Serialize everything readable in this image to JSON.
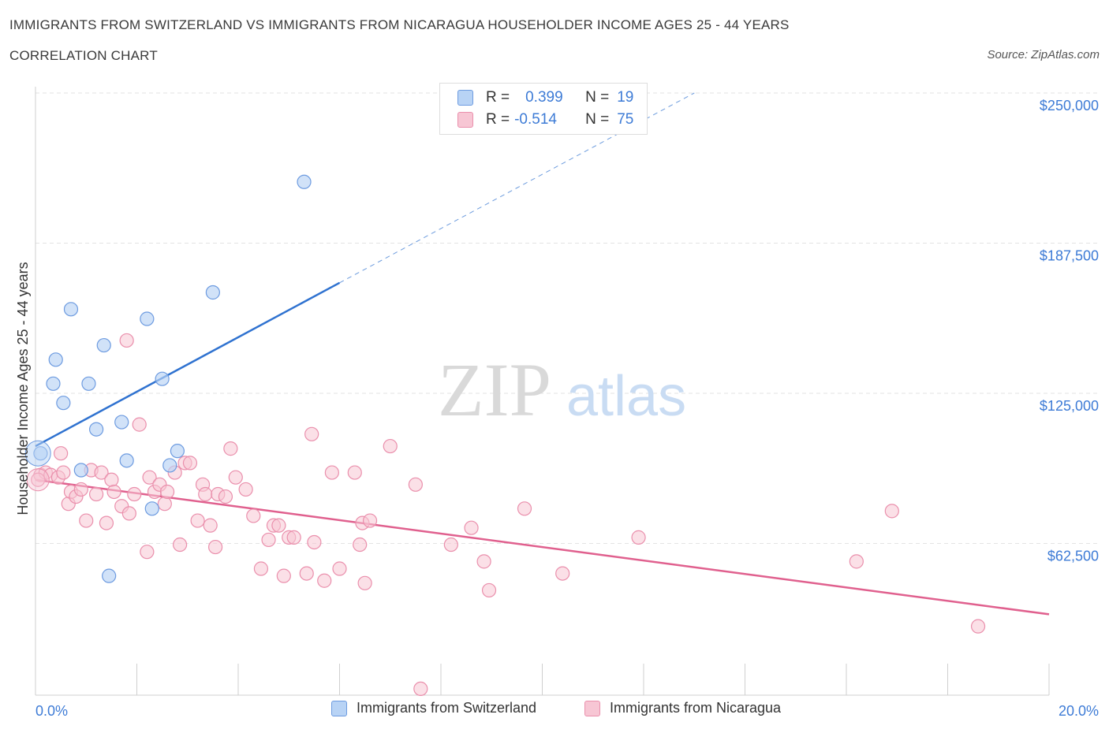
{
  "header": {
    "title": "IMMIGRANTS FROM SWITZERLAND VS IMMIGRANTS FROM NICARAGUA HOUSEHOLDER INCOME AGES 25 - 44 YEARS",
    "subtitle": "CORRELATION CHART",
    "source": "Source: ZipAtlas.com"
  },
  "watermark": {
    "zip": "ZIP",
    "atlas": "atlas"
  },
  "stats": {
    "r_label": "R =",
    "n_label": "N =",
    "switzerland": {
      "r": "0.399",
      "n": "19"
    },
    "nicaragua": {
      "r": "-0.514",
      "n": "75"
    }
  },
  "legend": {
    "switzerland": "Immigrants from Switzerland",
    "nicaragua": "Immigrants from Nicaragua"
  },
  "colors": {
    "switzerland_fill": "#b8d3f5",
    "switzerland_stroke": "#6d9be0",
    "switzerland_line": "#2f72d0",
    "nicaragua_fill": "#f7c6d4",
    "nicaragua_stroke": "#ea8fac",
    "nicaragua_line": "#e0608e",
    "axis_label": "#3d7bd6",
    "grid": "#e3e3e3"
  },
  "chart_data": {
    "type": "scatter",
    "ylabel": "Householder Income Ages 25 - 44 years",
    "xlim": [
      0,
      20
    ],
    "ylim": [
      0,
      250000
    ],
    "x_unit": "%",
    "x_tick_labels": [
      "0.0%",
      "20.0%"
    ],
    "y_ticks": [
      62500,
      125000,
      187500,
      250000
    ],
    "y_tick_labels": [
      "$62,500",
      "$125,000",
      "$187,500",
      "$250,000"
    ],
    "grid": true,
    "series": [
      {
        "name": "Immigrants from Switzerland",
        "points": [
          [
            0.1,
            100000
          ],
          [
            0.35,
            129000
          ],
          [
            0.4,
            139000
          ],
          [
            0.55,
            121000
          ],
          [
            0.7,
            160000
          ],
          [
            0.9,
            93000
          ],
          [
            1.05,
            129000
          ],
          [
            1.2,
            110000
          ],
          [
            1.35,
            145000
          ],
          [
            1.45,
            49000
          ],
          [
            1.7,
            113000
          ],
          [
            1.8,
            97000
          ],
          [
            2.2,
            156000
          ],
          [
            2.3,
            77000
          ],
          [
            2.5,
            131000
          ],
          [
            2.65,
            95000
          ],
          [
            2.8,
            101000
          ],
          [
            3.5,
            167000
          ],
          [
            5.3,
            213000
          ]
        ],
        "trend": {
          "x": [
            0,
            6
          ],
          "y": [
            103000,
            171000
          ],
          "dashed_to": [
            13,
            250000
          ]
        }
      },
      {
        "name": "Immigrants from Nicaragua",
        "points": [
          [
            0.1,
            91000
          ],
          [
            0.2,
            92000
          ],
          [
            0.3,
            91000
          ],
          [
            0.45,
            90000
          ],
          [
            0.5,
            100000
          ],
          [
            0.55,
            92000
          ],
          [
            0.65,
            79000
          ],
          [
            0.7,
            84000
          ],
          [
            0.8,
            82000
          ],
          [
            0.9,
            85000
          ],
          [
            1.0,
            72000
          ],
          [
            1.1,
            93000
          ],
          [
            1.2,
            83000
          ],
          [
            1.3,
            92000
          ],
          [
            1.4,
            71000
          ],
          [
            1.5,
            89000
          ],
          [
            1.55,
            84000
          ],
          [
            1.7,
            78000
          ],
          [
            1.8,
            147000
          ],
          [
            1.85,
            75000
          ],
          [
            1.95,
            83000
          ],
          [
            2.05,
            112000
          ],
          [
            2.2,
            59000
          ],
          [
            2.25,
            90000
          ],
          [
            2.35,
            84000
          ],
          [
            2.45,
            87000
          ],
          [
            2.55,
            79000
          ],
          [
            2.6,
            84000
          ],
          [
            2.75,
            92000
          ],
          [
            2.85,
            62000
          ],
          [
            2.95,
            96000
          ],
          [
            3.05,
            96000
          ],
          [
            3.2,
            72000
          ],
          [
            3.3,
            87000
          ],
          [
            3.35,
            83000
          ],
          [
            3.45,
            70000
          ],
          [
            3.55,
            61000
          ],
          [
            3.6,
            83000
          ],
          [
            3.75,
            82000
          ],
          [
            3.85,
            102000
          ],
          [
            3.95,
            90000
          ],
          [
            4.15,
            85000
          ],
          [
            4.3,
            74000
          ],
          [
            4.45,
            52000
          ],
          [
            4.6,
            64000
          ],
          [
            4.7,
            70000
          ],
          [
            4.8,
            70000
          ],
          [
            4.9,
            49000
          ],
          [
            5.0,
            65000
          ],
          [
            5.1,
            65000
          ],
          [
            5.35,
            50000
          ],
          [
            5.45,
            108000
          ],
          [
            5.5,
            63000
          ],
          [
            5.7,
            47000
          ],
          [
            5.85,
            92000
          ],
          [
            6.0,
            52000
          ],
          [
            6.3,
            92000
          ],
          [
            6.4,
            62000
          ],
          [
            6.45,
            71000
          ],
          [
            6.5,
            46000
          ],
          [
            6.6,
            72000
          ],
          [
            7.0,
            103000
          ],
          [
            7.5,
            87000
          ],
          [
            7.6,
            2000
          ],
          [
            8.2,
            62000
          ],
          [
            8.6,
            69000
          ],
          [
            8.85,
            55000
          ],
          [
            8.95,
            43000
          ],
          [
            9.65,
            77000
          ],
          [
            10.4,
            50000
          ],
          [
            11.9,
            65000
          ],
          [
            16.2,
            55000
          ],
          [
            16.9,
            76000
          ],
          [
            18.6,
            28000
          ],
          [
            0.05,
            89000
          ]
        ],
        "trend": {
          "x": [
            0,
            20
          ],
          "y": [
            89000,
            33000
          ]
        }
      }
    ]
  }
}
